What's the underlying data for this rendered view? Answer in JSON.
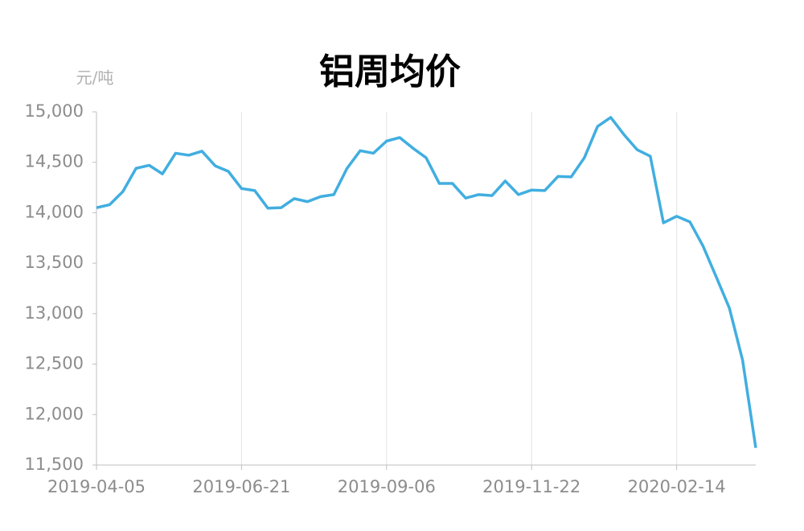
{
  "chart_data": {
    "type": "line",
    "title": "铝周均价",
    "y_label": "元/吨",
    "categories": [
      "2019-04-05",
      null,
      null,
      null,
      null,
      null,
      null,
      null,
      null,
      null,
      null,
      "2019-06-21",
      null,
      null,
      null,
      null,
      null,
      null,
      null,
      null,
      null,
      null,
      "2019-09-06",
      null,
      null,
      null,
      null,
      null,
      null,
      null,
      null,
      null,
      null,
      "2019-11-22",
      null,
      null,
      null,
      null,
      null,
      null,
      null,
      null,
      null,
      null,
      "2020-02-14",
      null,
      null,
      null,
      null,
      null,
      null
    ],
    "series": [
      {
        "name": "铝周均价",
        "color": "#41aee0",
        "values": [
          14050,
          14080,
          14210,
          14440,
          14470,
          14385,
          14590,
          14570,
          14610,
          14465,
          14410,
          14240,
          14220,
          14045,
          14050,
          14140,
          14110,
          14160,
          14180,
          14440,
          14615,
          14590,
          14710,
          14745,
          14640,
          14545,
          14290,
          14290,
          14145,
          14180,
          14170,
          14315,
          14180,
          14225,
          14220,
          14360,
          14355,
          14545,
          14855,
          14945,
          14775,
          14625,
          14560,
          13900,
          13965,
          13910,
          13670,
          13365,
          13055,
          12540,
          11670
        ]
      }
    ],
    "ylim": [
      11500,
      15000
    ],
    "yticks": [
      {
        "value": 11500,
        "label": "11,500"
      },
      {
        "value": 12000,
        "label": "12,000"
      },
      {
        "value": 12500,
        "label": "12,500"
      },
      {
        "value": 13000,
        "label": "13,000"
      },
      {
        "value": 13500,
        "label": "13,500"
      },
      {
        "value": 14000,
        "label": "14,000"
      },
      {
        "value": 14500,
        "label": "14,500"
      },
      {
        "value": 15000,
        "label": "15,000"
      }
    ],
    "grid": true
  }
}
